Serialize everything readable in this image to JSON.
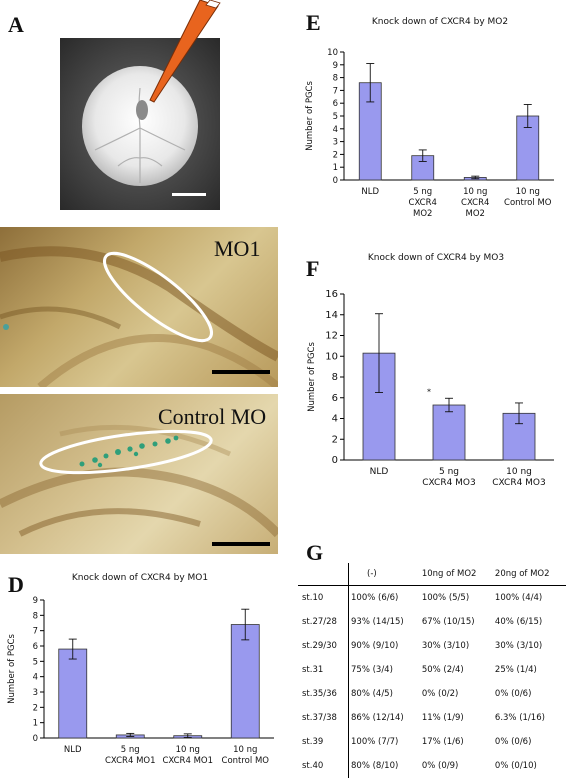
{
  "figure": {
    "panels": {
      "A": "A",
      "B": "B",
      "C": "C",
      "D": "D",
      "E": "E",
      "F": "F",
      "G": "G"
    },
    "photo_labels": {
      "B": "MO1",
      "C": "Control MO"
    }
  },
  "chart_data": [
    {
      "id": "D",
      "type": "bar",
      "title": "Knock down of CXCR4 by MO1",
      "ylabel": "Number of PGCs",
      "xlabel": "",
      "ylim": [
        0,
        9
      ],
      "yticks": [
        0,
        1,
        2,
        3,
        4,
        5,
        6,
        7,
        8,
        9
      ],
      "categories": [
        [
          "NLD"
        ],
        [
          "5 ng",
          "CXCR4 MO1"
        ],
        [
          "10 ng",
          "CXCR4 MO1"
        ],
        [
          "10 ng",
          "Control MO"
        ]
      ],
      "values": [
        5.8,
        0.2,
        0.15,
        7.4
      ],
      "errors": [
        0.65,
        0.1,
        0.12,
        1.0
      ],
      "annotations": [],
      "color": "#9999ee",
      "grid": false
    },
    {
      "id": "E",
      "type": "bar",
      "title": "Knock down of CXCR4 by MO2",
      "ylabel": "Number of PGCs",
      "xlabel": "",
      "ylim": [
        0,
        10
      ],
      "yticks": [
        0,
        1,
        2,
        3,
        4,
        5,
        6,
        7,
        8,
        9,
        10
      ],
      "categories": [
        [
          "NLD"
        ],
        [
          "5 ng",
          "CXCR4",
          "MO2"
        ],
        [
          "10 ng",
          "CXCR4",
          "MO2"
        ],
        [
          "10 ng",
          "Control MO"
        ]
      ],
      "values": [
        7.6,
        1.9,
        0.2,
        5.0
      ],
      "errors": [
        1.5,
        0.45,
        0.1,
        0.9
      ],
      "annotations": [],
      "color": "#9999ee",
      "grid": false
    },
    {
      "id": "F",
      "type": "bar",
      "title": "Knock down of CXCR4 by MO3",
      "ylabel": "Number of PGCs",
      "xlabel": "",
      "ylim": [
        0,
        16
      ],
      "yticks": [
        0,
        2,
        4,
        6,
        8,
        10,
        12,
        14,
        16
      ],
      "categories": [
        [
          "NLD"
        ],
        [
          "5 ng",
          "CXCR4 MO3"
        ],
        [
          "10 ng",
          "CXCR4 MO3"
        ]
      ],
      "values": [
        10.3,
        5.3,
        4.5
      ],
      "errors": [
        3.8,
        0.65,
        1.0
      ],
      "annotations": [
        "*"
      ],
      "color": "#9999ee",
      "grid": false
    },
    {
      "id": "G",
      "type": "table",
      "columns": [
        "",
        "(-)",
        "10ng of MO2",
        "20ng of MO2"
      ],
      "rows": [
        [
          "st.10",
          "100% (6/6)",
          "100% (5/5)",
          "100% (4/4)"
        ],
        [
          "st.27/28",
          "93% (14/15)",
          "67% (10/15)",
          "40% (6/15)"
        ],
        [
          "st.29/30",
          "90% (9/10)",
          "30% (3/10)",
          "30% (3/10)"
        ],
        [
          "st.31",
          "75% (3/4)",
          "50% (2/4)",
          "25% (1/4)"
        ],
        [
          "st.35/36",
          "80% (4/5)",
          "0% (0/2)",
          "0% (0/6)"
        ],
        [
          "st.37/38",
          "86% (12/14)",
          "11% (1/9)",
          "6.3% (1/16)"
        ],
        [
          "st.39",
          "100% (7/7)",
          "17% (1/6)",
          "0% (0/6)"
        ],
        [
          "st.40",
          "80% (8/10)",
          "0% (0/9)",
          "0% (0/10)"
        ]
      ]
    }
  ]
}
